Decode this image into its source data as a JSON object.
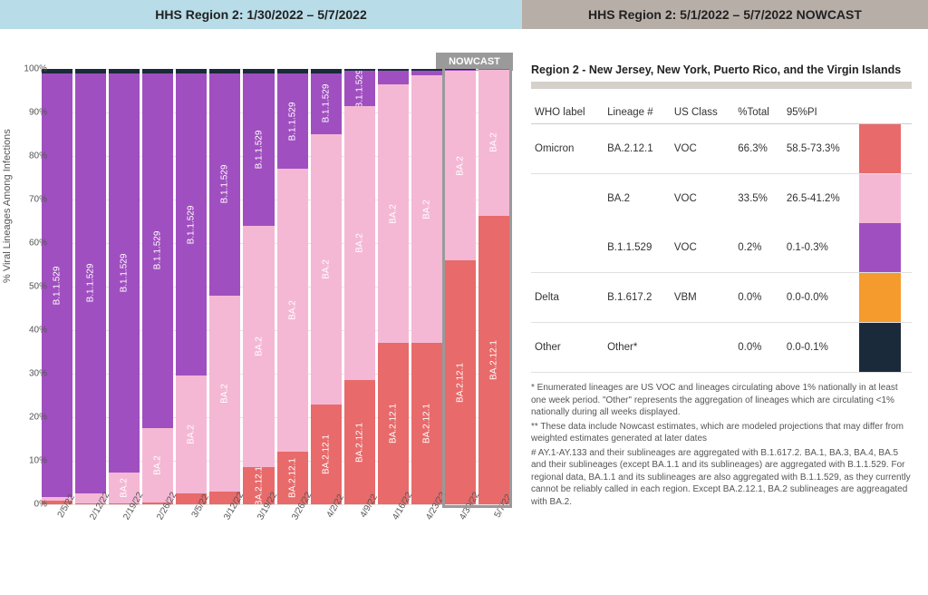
{
  "header": {
    "left": "HHS Region 2: 1/30/2022 – 5/7/2022",
    "right": "HHS Region 2: 5/1/2022 – 5/7/2022 NOWCAST"
  },
  "nowcast_label": "NOWCAST",
  "chart": {
    "type": "stacked-bar",
    "yaxis_title": "% Viral Lineages Among Infections",
    "ylim": [
      0,
      100
    ],
    "ytick_step": 10,
    "yticks": [
      "0%",
      "10%",
      "20%",
      "30%",
      "40%",
      "50%",
      "60%",
      "70%",
      "80%",
      "90%",
      "100%"
    ],
    "grid_color": "#e5e5e5",
    "background_color": "#ffffff",
    "label_color": "#ffffff",
    "bar_label_fontsize": 10,
    "series": {
      "BA.2.12.1": {
        "color": "#e86a6a",
        "code": "BA.2.12.1"
      },
      "BA.2": {
        "color": "#f4b8d5",
        "code": "BA.2"
      },
      "B.1.1.529": {
        "color": "#a04fc0",
        "code": "B.1.1.529"
      },
      "B.1.617.2": {
        "color": "#f59b2e",
        "code": "B.1.617.2"
      },
      "Other": {
        "color": "#1a2a3a",
        "code": "Other"
      }
    },
    "stack_order": [
      "BA.2.12.1",
      "BA.2",
      "B.1.1.529",
      "Other"
    ],
    "dates": [
      "2/5/22",
      "2/12/22",
      "2/19/22",
      "2/26/22",
      "3/5/22",
      "3/12/22",
      "3/19/22",
      "3/26/22",
      "4/2/22",
      "4/9/22",
      "4/16/22",
      "4/23/22",
      "4/30/22",
      "5/7/22"
    ],
    "stacks": [
      {
        "BA.2.12.1": 0.8,
        "BA.2": 0.8,
        "B.1.1.529": 97.4,
        "Other": 1.0
      },
      {
        "BA.2.12.1": 0.2,
        "BA.2": 2.4,
        "B.1.1.529": 96.4,
        "Other": 1.0
      },
      {
        "BA.2.12.1": 0.2,
        "BA.2": 7.0,
        "B.1.1.529": 91.8,
        "Other": 1.0
      },
      {
        "BA.2.12.1": 0.4,
        "BA.2": 17.2,
        "B.1.1.529": 81.4,
        "Other": 1.0
      },
      {
        "BA.2.12.1": 2.5,
        "BA.2": 27.0,
        "B.1.1.529": 69.5,
        "Other": 1.0
      },
      {
        "BA.2.12.1": 3.0,
        "BA.2": 45.0,
        "B.1.1.529": 51.0,
        "Other": 1.0
      },
      {
        "BA.2.12.1": 8.5,
        "BA.2": 55.5,
        "B.1.1.529": 35.0,
        "Other": 1.0
      },
      {
        "BA.2.12.1": 12.0,
        "BA.2": 65.0,
        "B.1.1.529": 22.0,
        "Other": 1.0
      },
      {
        "BA.2.12.1": 23.0,
        "BA.2": 62.0,
        "B.1.1.529": 14.0,
        "Other": 1.0
      },
      {
        "BA.2.12.1": 28.5,
        "BA.2": 63.0,
        "B.1.1.529": 8.0,
        "Other": 0.5
      },
      {
        "BA.2.12.1": 37.0,
        "BA.2": 59.5,
        "B.1.1.529": 3.0,
        "Other": 0.5
      },
      {
        "BA.2.12.1": 37.0,
        "BA.2": 61.5,
        "B.1.1.529": 1.0,
        "Other": 0.5
      },
      {
        "BA.2.12.1": 56.0,
        "BA.2": 43.5,
        "B.1.1.529": 0.3,
        "Other": 0.2
      },
      {
        "BA.2.12.1": 66.3,
        "BA.2": 33.5,
        "B.1.1.529": 0.2,
        "Other": 0.0
      }
    ],
    "label_threshold_pct": 6,
    "nowcast_bars": [
      12,
      13
    ]
  },
  "table": {
    "title": "Region 2 - New Jersey, New York, Puerto Rico, and the Virgin Islands",
    "columns": [
      "WHO label",
      "Lineage #",
      "US Class",
      "%Total",
      "95%PI"
    ],
    "rows": [
      {
        "who": "Omicron",
        "lineage": "BA.2.12.1",
        "class": "VOC",
        "pct": "66.3%",
        "pi": "58.5-73.3%",
        "color": "#e86a6a",
        "border": true
      },
      {
        "who": "",
        "lineage": "BA.2",
        "class": "VOC",
        "pct": "33.5%",
        "pi": "26.5-41.2%",
        "color": "#f4b8d5",
        "border": false
      },
      {
        "who": "",
        "lineage": "B.1.1.529",
        "class": "VOC",
        "pct": "0.2%",
        "pi": "0.1-0.3%",
        "color": "#a04fc0",
        "border": true
      },
      {
        "who": "Delta",
        "lineage": "B.1.617.2",
        "class": "VBM",
        "pct": "0.0%",
        "pi": "0.0-0.0%",
        "color": "#f59b2e",
        "border": true
      },
      {
        "who": "Other",
        "lineage": "Other*",
        "class": "",
        "pct": "0.0%",
        "pi": "0.0-0.1%",
        "color": "#1a2a3a",
        "border": true
      }
    ]
  },
  "footnotes": [
    "*     Enumerated lineages are US VOC and lineages circulating above 1% nationally in at least one week period. \"Other\" represents the aggregation of lineages which are circulating <1% nationally during all weeks displayed.",
    "**    These data include Nowcast estimates, which are modeled projections that may differ from weighted estimates generated at later dates",
    "#     AY.1-AY.133 and their sublineages are aggregated with B.1.617.2. BA.1, BA.3, BA.4, BA.5 and their sublineages (except BA.1.1 and its sublineages) are aggregated with B.1.1.529. For regional data, BA.1.1 and its sublineages are also aggregated with B.1.1.529, as they currently cannot be reliably called in each region. Except BA.2.12.1, BA.2 sublineages are aggreagated with BA.2."
  ]
}
